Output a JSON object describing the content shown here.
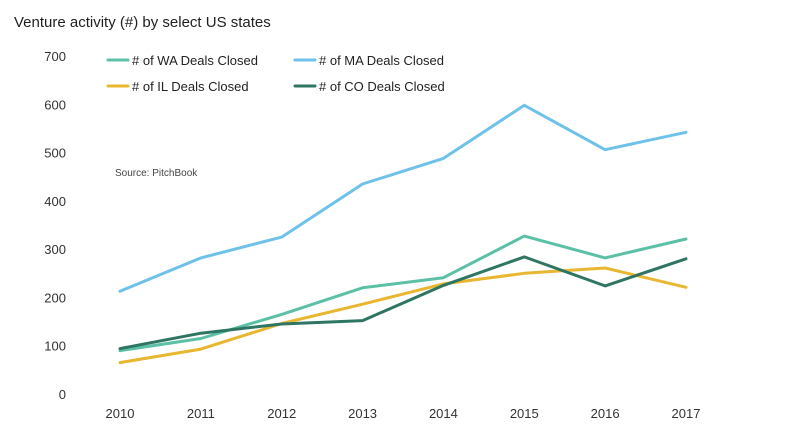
{
  "chart_data": {
    "type": "line",
    "title": "Venture activity (#) by select US states",
    "xlabel": "",
    "ylabel": "",
    "categories": [
      "2010",
      "2011",
      "2012",
      "2013",
      "2014",
      "2015",
      "2016",
      "2017"
    ],
    "ylim": [
      0,
      700
    ],
    "yticks": [
      0,
      100,
      200,
      300,
      400,
      500,
      600,
      700
    ],
    "grid": false,
    "legend_position": "top",
    "annotation": "Source: PitchBook",
    "series": [
      {
        "name": "# of WA Deals Closed",
        "color": "#5bc0a6",
        "values": [
          92,
          117,
          167,
          222,
          243,
          329,
          284,
          323
        ]
      },
      {
        "name": "# of MA Deals Closed",
        "color": "#6ec2ea",
        "values": [
          215,
          284,
          327,
          437,
          490,
          600,
          508,
          544
        ]
      },
      {
        "name": "# of IL Deals Closed",
        "color": "#e8b72f",
        "values": [
          67,
          95,
          148,
          188,
          230,
          252,
          263,
          223
        ]
      },
      {
        "name": "# of CO Deals Closed",
        "color": "#2f7563",
        "values": [
          96,
          128,
          147,
          154,
          227,
          286,
          226,
          282
        ]
      }
    ]
  }
}
